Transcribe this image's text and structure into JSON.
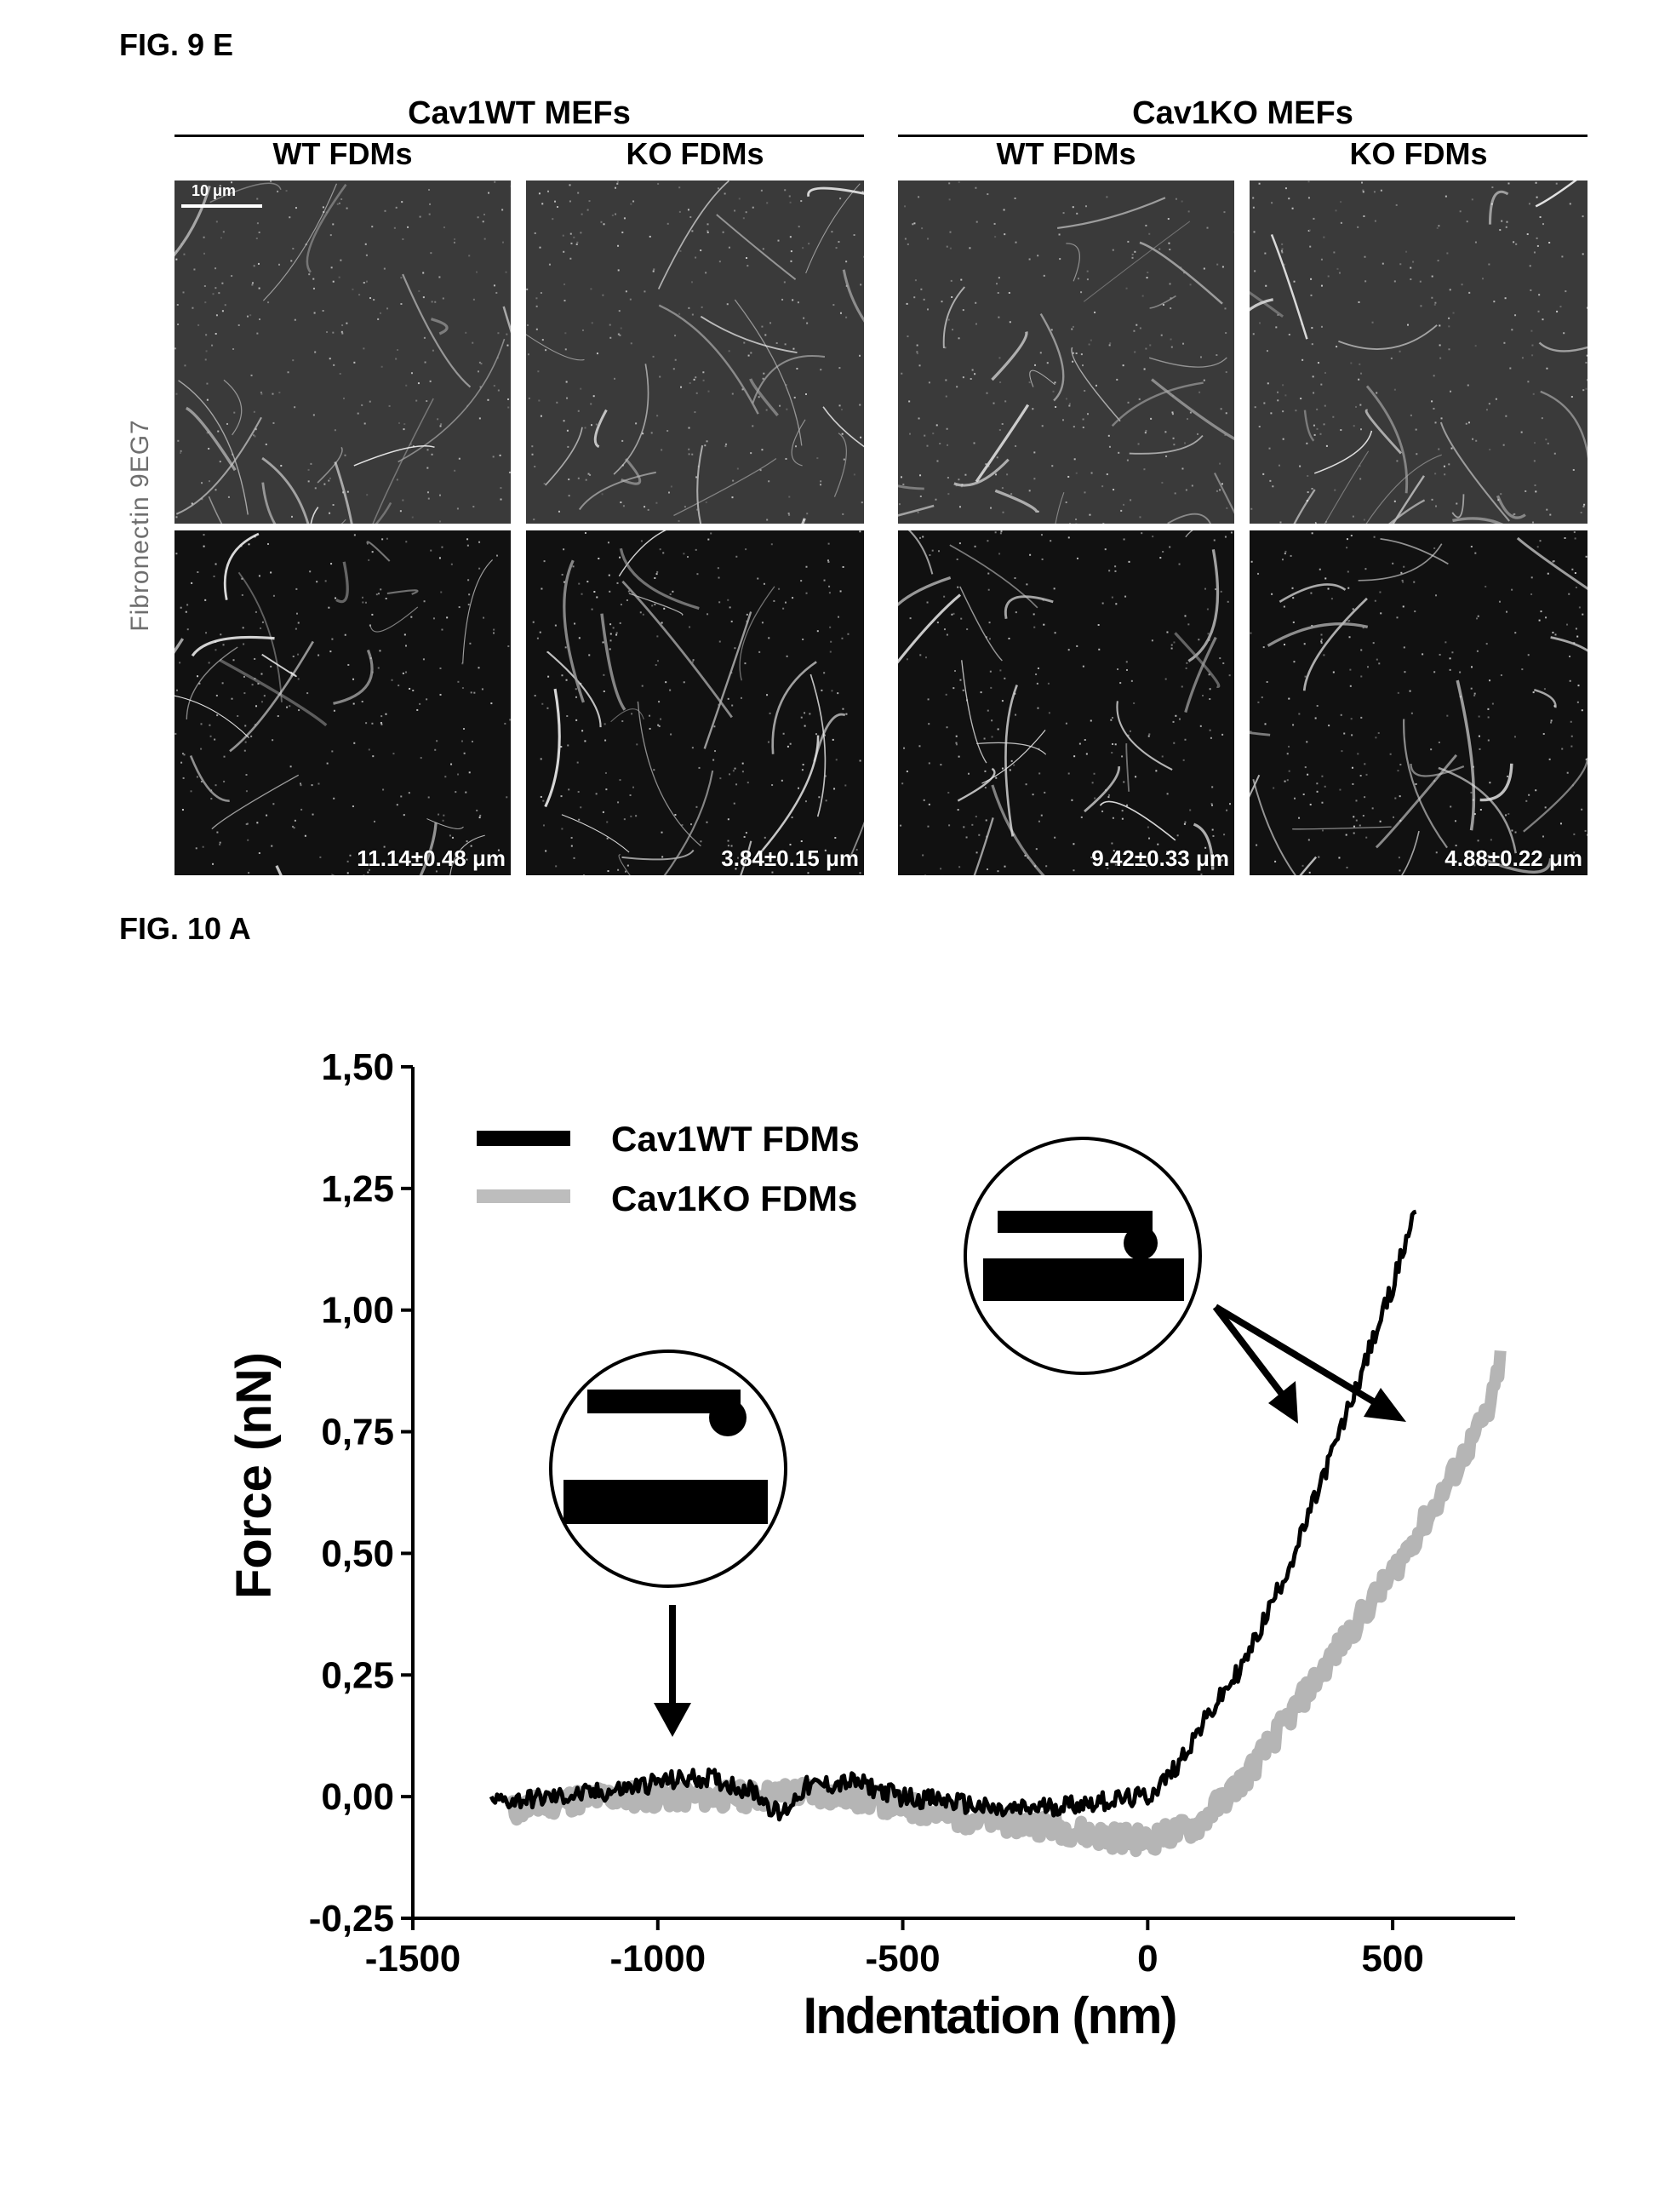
{
  "fig9e": {
    "label": "FIG. 9 E",
    "groups": [
      {
        "title": "Cav1WT MEFs",
        "columns": [
          "WT FDMs",
          "KO FDMs"
        ]
      },
      {
        "title": "Cav1KO MEFs",
        "columns": [
          "WT FDMs",
          "KO FDMs"
        ]
      }
    ],
    "row_label": "Fibronectin 9EG7",
    "scale_bar": "10 μm",
    "measurements": [
      "11.14±0.48 μm",
      "3.84±0.15 μm",
      "9.42±0.33 μm",
      "4.88±0.22 μm"
    ]
  },
  "fig10a": {
    "label": "FIG. 10 A"
  },
  "chart_data": {
    "type": "line",
    "title": "",
    "xlabel": "Indentation (nm)",
    "ylabel": "Force (nN)",
    "xlim": [
      -1500,
      750
    ],
    "ylim": [
      -0.25,
      1.5
    ],
    "xticks": [
      -1500,
      -1000,
      -500,
      0,
      500
    ],
    "xtick_labels": [
      "-1500",
      "-1000",
      "-500",
      "0",
      "500"
    ],
    "yticks": [
      -0.25,
      0,
      0.25,
      0.5,
      0.75,
      1.0,
      1.25,
      1.5
    ],
    "ytick_labels": [
      "-0,25",
      "0,00",
      "0,25",
      "0,50",
      "0,75",
      "1,00",
      "1,25",
      "1,50"
    ],
    "legend": [
      "Cav1WT FDMs",
      "Cav1KO FDMs"
    ],
    "legend_position": "top-left",
    "series": [
      {
        "name": "Cav1WT FDMs",
        "color": "#000000",
        "x": [
          -1340,
          -1200,
          -1100,
          -1000,
          -900,
          -800,
          -750,
          -700,
          -600,
          -500,
          -400,
          -300,
          -200,
          -100,
          0,
          50,
          100,
          200,
          300,
          400,
          500,
          550
        ],
        "y": [
          -0.01,
          0.0,
          0.01,
          0.03,
          0.04,
          0.01,
          -0.04,
          0.02,
          0.03,
          0.0,
          -0.01,
          -0.03,
          -0.02,
          -0.01,
          0.0,
          0.05,
          0.13,
          0.28,
          0.5,
          0.77,
          1.05,
          1.22
        ]
      },
      {
        "name": "Cav1KO FDMs",
        "color": "#b5b5b5",
        "x": [
          -1300,
          -1200,
          -1100,
          -1000,
          -900,
          -800,
          -700,
          -600,
          -500,
          -400,
          -300,
          -200,
          -100,
          0,
          100,
          200,
          300,
          400,
          500,
          600,
          700,
          720
        ],
        "y": [
          -0.03,
          -0.01,
          0.0,
          0.0,
          0.0,
          0.0,
          0.01,
          0.0,
          -0.02,
          -0.04,
          -0.05,
          -0.06,
          -0.08,
          -0.09,
          -0.06,
          0.04,
          0.18,
          0.32,
          0.46,
          0.62,
          0.8,
          0.9
        ]
      }
    ],
    "annotations": [
      "cantilever-above-substrate",
      "cantilever-indenting-substrate"
    ]
  }
}
